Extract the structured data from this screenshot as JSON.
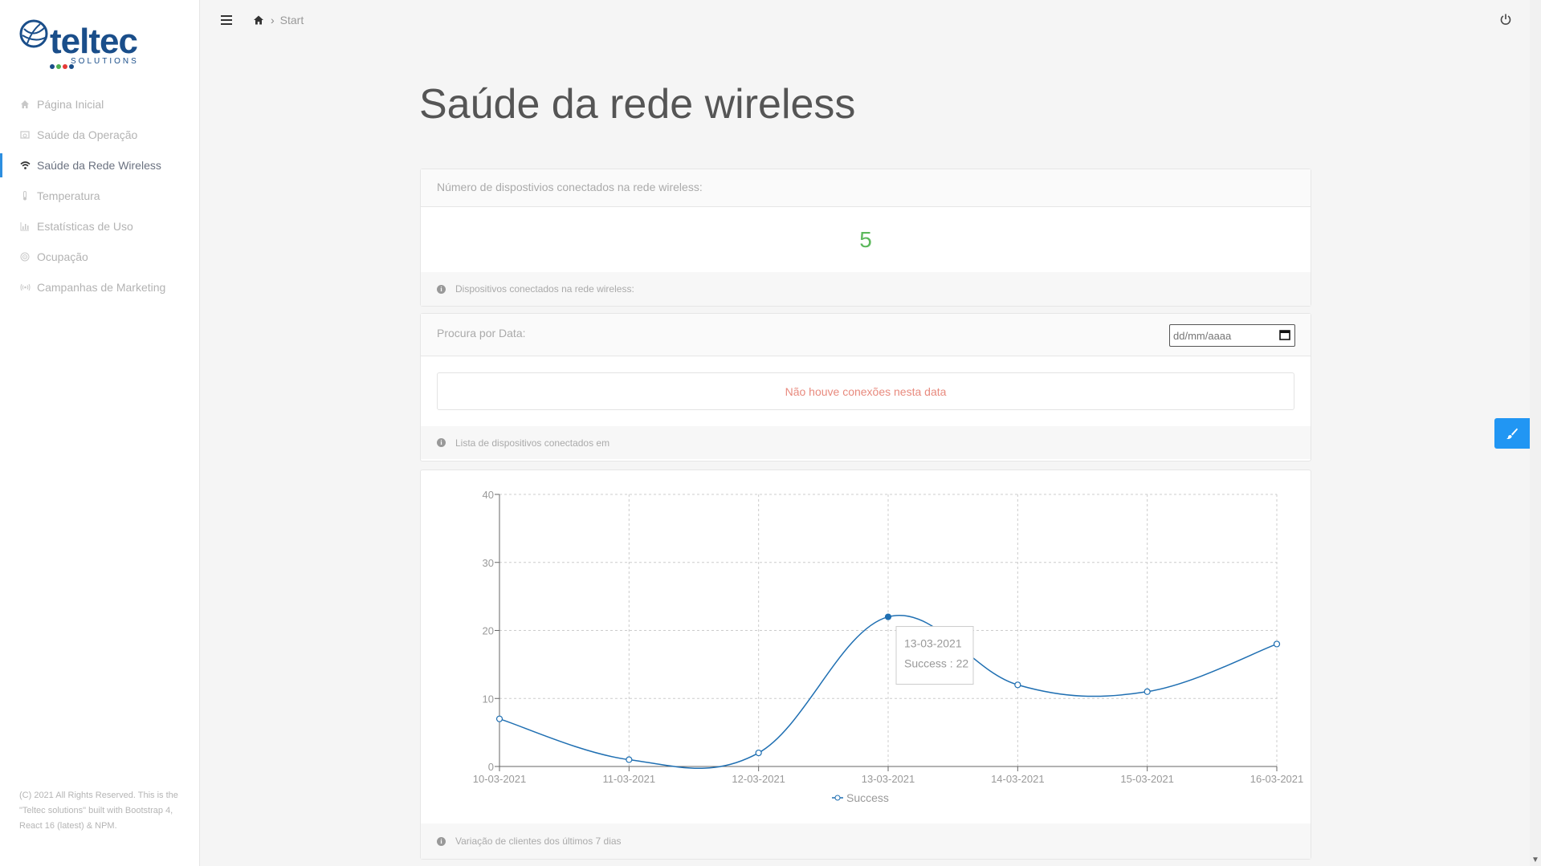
{
  "sidebar": {
    "logo": {
      "text": "teltec",
      "sub": "SOLUTIONS"
    },
    "items": [
      {
        "label": "Página Inicial",
        "icon": "home-icon"
      },
      {
        "label": "Saúde da Operação",
        "icon": "dashboard-icon"
      },
      {
        "label": "Saúde da Rede Wireless",
        "icon": "wifi-icon",
        "active": true
      },
      {
        "label": "Temperatura",
        "icon": "thermometer-icon"
      },
      {
        "label": "Estatísticas de Uso",
        "icon": "bar-chart-icon"
      },
      {
        "label": "Ocupação",
        "icon": "target-icon"
      },
      {
        "label": "Campanhas de Marketing",
        "icon": "broadcast-icon"
      }
    ],
    "footer": "(C) 2021 All Rights Reserved. This is the \"Teltec solutions\" built with Bootstrap 4, React 16 (latest) & NPM."
  },
  "topbar": {
    "breadcrumb": "Start"
  },
  "page": {
    "title": "Saúde da rede wireless"
  },
  "devices_card": {
    "header": "Número de dispostivios conectados na rede wireless:",
    "value": "5",
    "footer": "Dispositivos conectados na rede wireless:"
  },
  "search_card": {
    "header": "Procura por Data:",
    "date_placeholder": "dd/mm/aaaa",
    "alert": "Não houve conexões nesta data",
    "footer": "Lista de dispositivos conectados em"
  },
  "chart_card": {
    "footer": "Variação de clientes dos últimos 7 dias"
  },
  "chart_data": {
    "type": "line",
    "categories": [
      "10-03-2021",
      "11-03-2021",
      "12-03-2021",
      "13-03-2021",
      "14-03-2021",
      "15-03-2021",
      "16-03-2021"
    ],
    "series": [
      {
        "name": "Success",
        "values": [
          7,
          1,
          2,
          22,
          12,
          11,
          18
        ]
      }
    ],
    "ylim": [
      0,
      40
    ],
    "yticks": [
      0,
      10,
      20,
      30,
      40
    ],
    "grid": true,
    "legend": "bottom",
    "tooltip": {
      "category": "13-03-2021",
      "text": "Success : 22"
    },
    "color": "#1f6fb2"
  },
  "colors": {
    "accent": "#2196f3",
    "success_number": "#5cb85c",
    "alert_text": "#e88a7e"
  }
}
